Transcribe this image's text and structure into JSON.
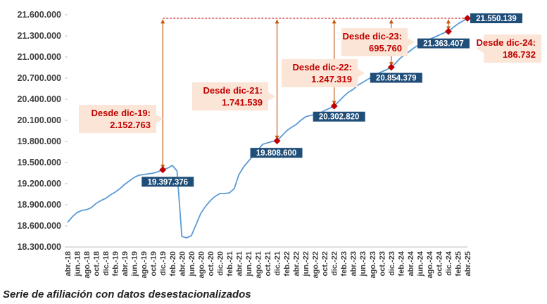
{
  "caption": "Serie de afiliación con datos desestacionalizados",
  "chart_data": {
    "type": "line",
    "title": "",
    "xlabel": "",
    "ylabel": "",
    "ylim": [
      18300000,
      21600000
    ],
    "y_ticks": [
      "18.300.000",
      "18.600.000",
      "18.900.000",
      "19.200.000",
      "19.500.000",
      "19.800.000",
      "20.100.000",
      "20.400.000",
      "20.700.000",
      "21.000.000",
      "21.300.000",
      "21.600.000"
    ],
    "y_tick_values": [
      18300000,
      18600000,
      18900000,
      19200000,
      19500000,
      19800000,
      20100000,
      20400000,
      20700000,
      21000000,
      21300000,
      21600000
    ],
    "x_tick_labels": [
      "abr.-18",
      "jun.-18",
      "ago.-18",
      "oct.-18",
      "dic.-18",
      "feb.-19",
      "abr.-19",
      "jun.-19",
      "ago.-19",
      "oct.-19",
      "dic.-19",
      "feb.-20",
      "abr.-20",
      "jun.-20",
      "ago.-20",
      "oct.-20",
      "dic.-20",
      "feb.-21",
      "abr.-21",
      "jun.-21",
      "ago.-21",
      "oct.-21",
      "dic.-21",
      "feb.-22",
      "abr.-22",
      "jun.-22",
      "ago.-22",
      "oct.-22",
      "dic.-22",
      "feb.-23",
      "abr.-23",
      "jun.-23",
      "ago.-23",
      "oct.-23",
      "dic.-23",
      "feb.-24",
      "abr.-24",
      "jun.-24",
      "ago.-24",
      "oct.-24",
      "dic.-24",
      "feb.-25",
      "abr.-25"
    ],
    "series": [
      {
        "color": "#5b9bd5",
        "x": [
          "abr.-18",
          "may.-18",
          "jun.-18",
          "jul.-18",
          "ago.-18",
          "sep.-18",
          "oct.-18",
          "nov.-18",
          "dic.-18",
          "ene.-19",
          "feb.-19",
          "mar.-19",
          "abr.-19",
          "may.-19",
          "jun.-19",
          "jul.-19",
          "ago.-19",
          "sep.-19",
          "oct.-19",
          "nov.-19",
          "dic.-19",
          "ene.-20",
          "feb.-20",
          "mar.-20",
          "abr.-20",
          "may.-20",
          "jun.-20",
          "jul.-20",
          "ago.-20",
          "sep.-20",
          "oct.-20",
          "nov.-20",
          "dic.-20",
          "ene.-21",
          "feb.-21",
          "mar.-21",
          "abr.-21",
          "may.-21",
          "jun.-21",
          "jul.-21",
          "ago.-21",
          "sep.-21",
          "oct.-21",
          "nov.-21",
          "dic.-21",
          "ene.-22",
          "feb.-22",
          "mar.-22",
          "abr.-22",
          "may.-22",
          "jun.-22",
          "jul.-22",
          "ago.-22",
          "sep.-22",
          "oct.-22",
          "nov.-22",
          "dic.-22",
          "ene.-23",
          "feb.-23",
          "mar.-23",
          "abr.-23",
          "may.-23",
          "jun.-23",
          "jul.-23",
          "ago.-23",
          "sep.-23",
          "oct.-23",
          "nov.-23",
          "dic.-23",
          "ene.-24",
          "feb.-24",
          "mar.-24",
          "abr.-24",
          "may.-24",
          "jun.-24",
          "jul.-24",
          "ago.-24",
          "sep.-24",
          "oct.-24",
          "nov.-24",
          "dic.-24",
          "ene.-25",
          "feb.-25",
          "mar.-25",
          "abr.-25"
        ],
        "values": [
          18650000,
          18730000,
          18790000,
          18820000,
          18830000,
          18860000,
          18920000,
          18960000,
          18990000,
          19040000,
          19080000,
          19130000,
          19190000,
          19240000,
          19290000,
          19320000,
          19330000,
          19340000,
          19350000,
          19370000,
          19397376,
          19420000,
          19460000,
          19380000,
          18450000,
          18430000,
          18460000,
          18620000,
          18780000,
          18880000,
          18960000,
          19020000,
          19060000,
          19060000,
          19070000,
          19130000,
          19330000,
          19440000,
          19520000,
          19600000,
          19680000,
          19760000,
          19780000,
          19800000,
          19808600,
          19880000,
          19950000,
          20000000,
          20040000,
          20100000,
          20150000,
          20170000,
          20180000,
          20200000,
          20240000,
          20270000,
          20302820,
          20370000,
          20440000,
          20500000,
          20540000,
          20600000,
          20640000,
          20680000,
          20720000,
          20760000,
          20790000,
          20820000,
          20854379,
          20920000,
          20990000,
          21040000,
          21090000,
          21140000,
          21180000,
          21220000,
          21250000,
          21280000,
          21310000,
          21340000,
          21363407,
          21420000,
          21470000,
          21510000,
          21550139
        ]
      }
    ],
    "points": [
      {
        "x": "dic.-19",
        "value": 19397376,
        "label": "19.397.376"
      },
      {
        "x": "dic.-21",
        "value": 19808600,
        "label": "19.808.600"
      },
      {
        "x": "dic.-22",
        "value": 20302820,
        "label": "20.302.820"
      },
      {
        "x": "dic.-23",
        "value": 20854379,
        "label": "20.854.379"
      },
      {
        "x": "dic.-24",
        "value": 21363407,
        "label": "21.363.407"
      },
      {
        "x": "abr.-25",
        "value": 21550139,
        "label": "21.550.139"
      }
    ],
    "annotations": [
      {
        "from": "dic.-19",
        "title": "Desde dic-19:",
        "value": "2.152.763"
      },
      {
        "from": "dic.-21",
        "title": "Desde dic-21:",
        "value": "1.741.539"
      },
      {
        "from": "dic.-22",
        "title": "Desde dic-22:",
        "value": "1.247.319"
      },
      {
        "from": "dic.-23",
        "title": "Desde dic-23:",
        "value": "695.760"
      },
      {
        "from": "dic.-24",
        "title": "Desde dic-24:",
        "value": "186.732"
      }
    ],
    "colors": {
      "line": "#5b9bd5",
      "marker": "#c00000",
      "label_box": "#1f4e79",
      "callout_fill": "#fbe5d6",
      "callout_text": "#c00000",
      "arrow": "#c55a11",
      "grid": "#d9d9d9"
    }
  }
}
